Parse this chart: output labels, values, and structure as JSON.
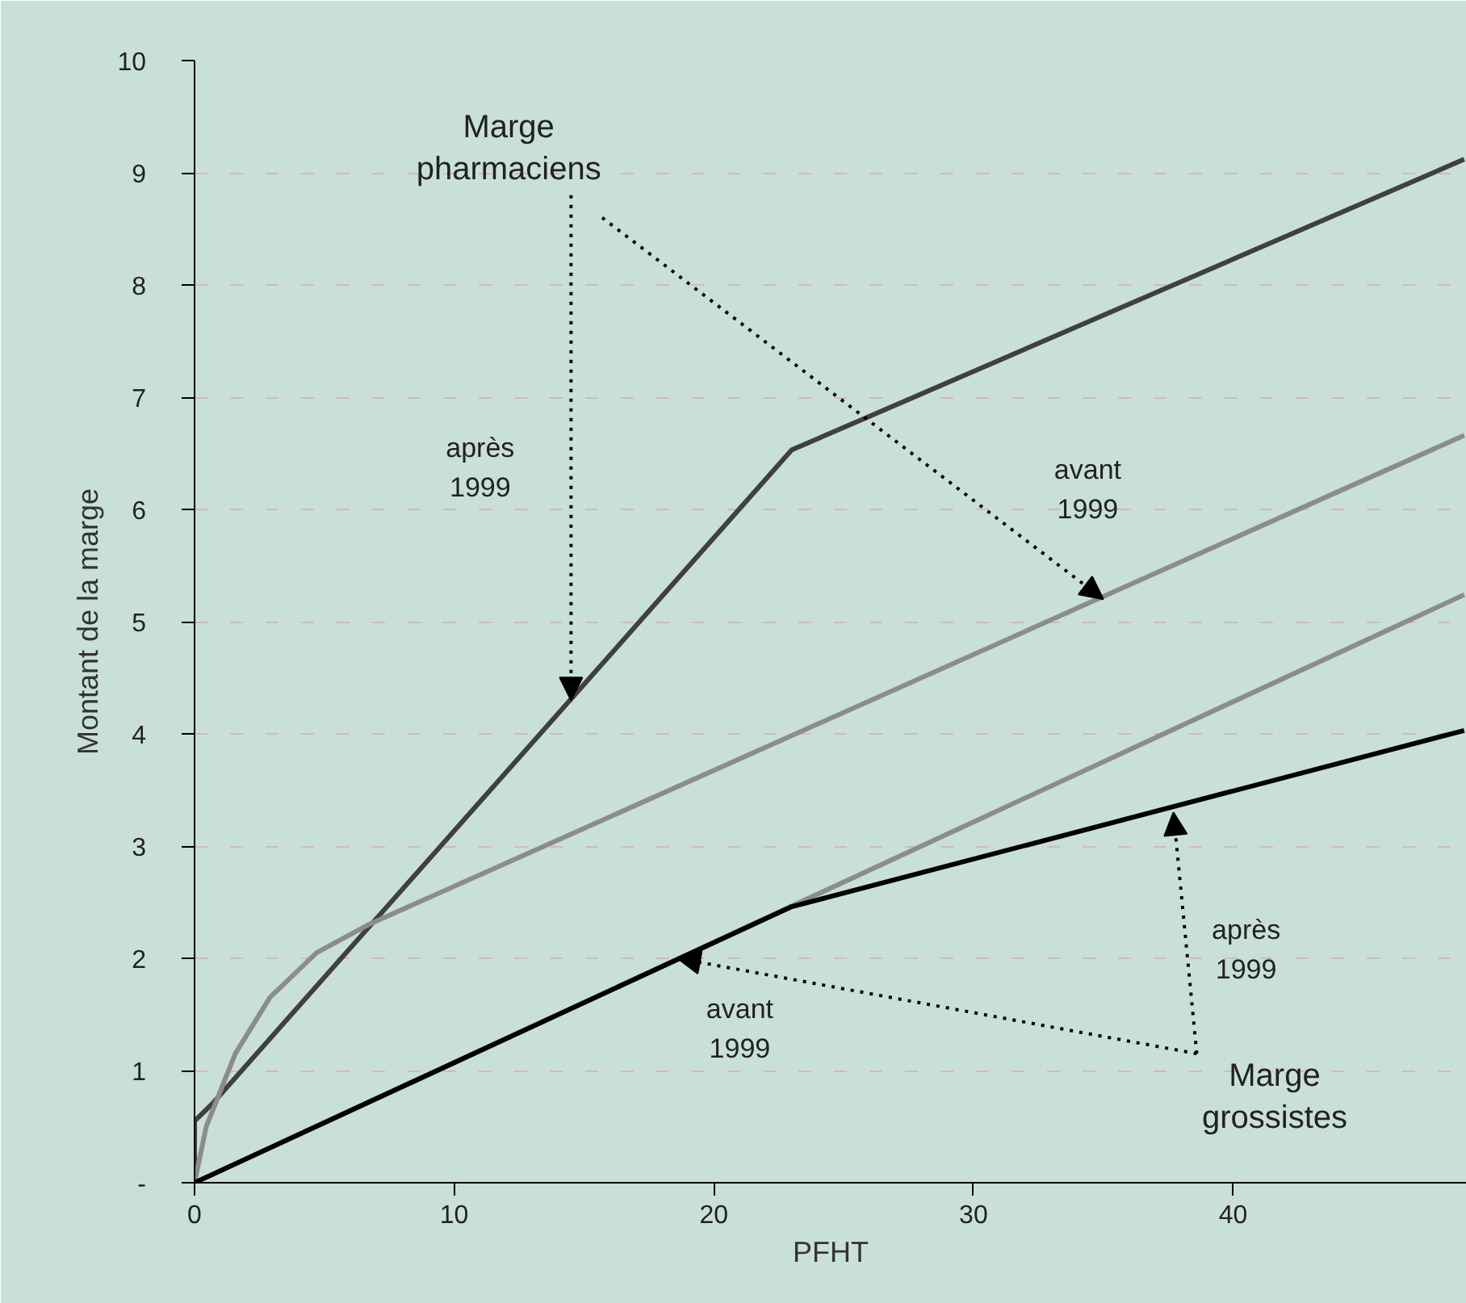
{
  "chart_data": {
    "type": "line",
    "xlabel": "PFHT",
    "ylabel": "Montant de la marge",
    "xlim": [
      0,
      49
    ],
    "xticks": [
      0,
      10,
      20,
      30,
      40
    ],
    "ylim": [
      0,
      10
    ],
    "yticks": [
      {
        "value": 0,
        "label": "-"
      },
      1,
      2,
      3,
      4,
      5,
      6,
      7,
      8,
      9,
      10
    ],
    "grid": "y",
    "marker": "none",
    "line_style": "solid",
    "series": [
      {
        "color": "#404040",
        "x": [
          0,
          0,
          0.67,
          23,
          48.9
        ],
        "values": [
          0,
          0.55,
          0.7,
          6.53,
          9.12
        ]
      },
      {
        "color": "#8c8c8c",
        "x": [
          0,
          0.45,
          1.57,
          2.9,
          4.7,
          6.7,
          48.9
        ],
        "values": [
          0,
          0.5,
          1.15,
          1.65,
          2.05,
          2.3,
          6.66
        ]
      },
      {
        "color": "#8c8c8c",
        "x": [
          0,
          48.9
        ],
        "values": [
          0,
          5.24
        ]
      },
      {
        "color": "#000000",
        "x": [
          0,
          23,
          48.9
        ],
        "values": [
          0,
          2.46,
          4.03
        ]
      }
    ],
    "annotations": [
      {
        "text": "Marge pharmaciens",
        "x": 14.5,
        "y": 4.3
      },
      "après 1999",
      {
        "text": "avant 1999",
        "x": 35,
        "y": 5.2
      },
      "après 1999",
      {
        "text": "avant 1999",
        "x": 18.6,
        "y": 2.0
      },
      {
        "text": "Marge grossistes",
        "x": 37.7,
        "y": 3.3
      }
    ]
  }
}
